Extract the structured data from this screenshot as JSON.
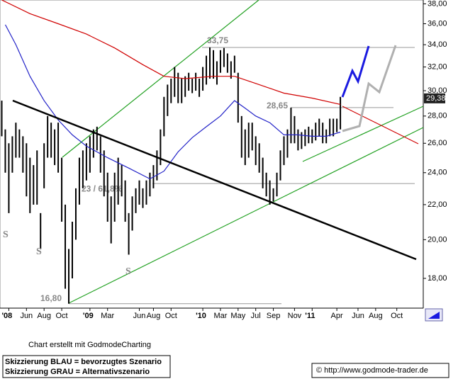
{
  "chart_data": {
    "type": "ohlc",
    "log": true,
    "ylim": [
      16.6,
      38.4
    ],
    "yticks": [
      {
        "value": 18,
        "label": "18,00"
      },
      {
        "value": 20,
        "label": "20,00"
      },
      {
        "value": 22,
        "label": "22,00"
      },
      {
        "value": 24,
        "label": "24,00"
      },
      {
        "value": 26,
        "label": "26,00"
      },
      {
        "value": 28,
        "label": "28,00"
      },
      {
        "value": 30,
        "label": "30,00"
      },
      {
        "value": 32,
        "label": "32,00"
      },
      {
        "value": 34,
        "label": "34,00"
      },
      {
        "value": 36,
        "label": "36,00"
      },
      {
        "value": 38,
        "label": "38,00"
      }
    ],
    "color": "#000000",
    "categories": [
      null,
      null,
      "'08",
      null,
      null,
      null,
      null,
      "Jun",
      null,
      null,
      null,
      null,
      "Aug",
      null,
      null,
      null,
      null,
      "Oct",
      null,
      null,
      null,
      null,
      null,
      null,
      null,
      "'09",
      null,
      null,
      null,
      null,
      "Mar",
      null,
      null,
      null,
      null,
      null,
      null,
      null,
      null,
      "Jun",
      null,
      null,
      null,
      "Aug",
      null,
      null,
      null,
      null,
      "Oct",
      null,
      null,
      null,
      null,
      null,
      null,
      null,
      null,
      "'10",
      null,
      null,
      null,
      null,
      "Mar",
      null,
      null,
      null,
      null,
      "May",
      null,
      null,
      null,
      null,
      "Jul",
      null,
      null,
      null,
      null,
      "Sep",
      null,
      null,
      null,
      null,
      null,
      "Nov",
      null,
      null,
      null,
      null,
      "'11",
      null,
      null,
      null,
      null,
      null,
      null,
      "Apr",
      null,
      null,
      null,
      null,
      null,
      "Jun",
      null,
      null,
      null,
      null,
      "Aug",
      null,
      null,
      null,
      null,
      null,
      "Oct",
      null,
      null,
      null,
      null,
      null,
      null,
      null
    ],
    "high": [
      29.2,
      27,
      26,
      26.5,
      27.5,
      27,
      26.5,
      26,
      25,
      24.5,
      25.5,
      21.5,
      26,
      28,
      27.5,
      27,
      27.5,
      25,
      22,
      19.5,
      21,
      23,
      25,
      25.5,
      26,
      26.5,
      27,
      27.2,
      26.5,
      25.5,
      24,
      22.5,
      24,
      25,
      24.5,
      23.5,
      21.5,
      22.5,
      23,
      23.5,
      23,
      23.5,
      24,
      24.5,
      25.5,
      27,
      29.5,
      30.5,
      31,
      32,
      31.5,
      31,
      31.2,
      31.5,
      31,
      31.5,
      31,
      32,
      33,
      33.75,
      33.5,
      32.5,
      33.5,
      33.7,
      33.2,
      32.5,
      33,
      31.5,
      28,
      27,
      27.5,
      27.5,
      26.5,
      26,
      25,
      24,
      23.5,
      23,
      24,
      25.5,
      26.5,
      27,
      28.65,
      28,
      27,
      26.8,
      27,
      27.2,
      27,
      27.5,
      27.8,
      27.5,
      27,
      27.8,
      27.8,
      27.8,
      29.5,
      null,
      null,
      null,
      null,
      null,
      null,
      null,
      null,
      null,
      null,
      null,
      null,
      null,
      null,
      null,
      null,
      null,
      null,
      null,
      null,
      null,
      null,
      null
    ],
    "low": [
      26.5,
      24,
      21.5,
      24,
      25,
      25,
      24,
      22.5,
      21.5,
      22,
      22,
      19.5,
      23,
      25,
      25,
      24.5,
      24,
      21,
      17.5,
      16.8,
      18,
      20,
      22,
      23,
      23.5,
      24,
      25,
      25.5,
      24,
      22.5,
      21,
      19.8,
      21,
      22,
      22.5,
      21,
      19.2,
      20.5,
      21.5,
      22,
      21.8,
      22,
      22.5,
      23,
      23.5,
      24.5,
      26.5,
      28,
      29,
      29.5,
      29,
      29,
      29.5,
      30,
      29.8,
      30,
      29.5,
      30,
      30.5,
      31,
      31,
      30.5,
      31.5,
      32,
      31.5,
      31,
      31.5,
      27.5,
      25,
      24.5,
      25,
      25.5,
      24.5,
      24,
      23,
      22.5,
      22,
      22.2,
      22.5,
      23.5,
      24.5,
      25,
      26,
      26,
      25.5,
      25.6,
      25.8,
      26,
      26,
      26.2,
      26.5,
      26,
      26,
      26.5,
      26.5,
      26.8,
      27,
      null,
      null,
      null,
      null,
      null,
      null,
      null,
      null,
      null,
      null,
      null,
      null,
      null,
      null,
      null,
      null,
      null,
      null,
      null,
      null,
      null,
      null,
      null
    ],
    "moving_averages": [
      {
        "color": "#2323c8",
        "x": [
          1,
          4,
          8,
          12,
          16,
          20,
          24,
          30,
          36,
          42,
          46,
          50,
          54,
          58,
          62,
          66,
          69,
          72,
          76,
          80,
          84,
          88,
          92,
          96
        ],
        "values": [
          35.9,
          34,
          31.2,
          29.2,
          27.7,
          26.6,
          25.8,
          25,
          24.3,
          23.6,
          24.1,
          25.4,
          26.4,
          27.2,
          28,
          29.2,
          28.6,
          28,
          27.5,
          26.6,
          26.6,
          26.5,
          26.5,
          26.8
        ]
      },
      {
        "color": "#d00000",
        "x": [
          0,
          8,
          16,
          24,
          32,
          40,
          46,
          52,
          60,
          66,
          72,
          80,
          88,
          96
        ],
        "values": [
          38.4,
          37,
          36,
          35,
          33.7,
          32.2,
          31.2,
          31,
          31.2,
          31.2,
          30.6,
          29.8,
          29.4,
          28.9
        ]
      }
    ],
    "levels": [
      {
        "value": 33.75,
        "label": "33,75"
      },
      {
        "value": 28.65,
        "label": "28,65"
      },
      {
        "value": 23.3,
        "label": "23 / 61,8%"
      },
      {
        "value": 16.8,
        "label": "16,80"
      }
    ],
    "last_price": {
      "value": 29.38,
      "label": "29,38"
    },
    "markers": [
      "S",
      "S",
      "S"
    ]
  },
  "footer": {
    "credit": "Chart erstellt mit GodmodeCharting",
    "legend": [
      "Skizzierung BLAU = bevorzugtes Szenario",
      "Skizzierung GRAU = Alternativszenario"
    ],
    "url": "© http://www.godmode-trader.de"
  }
}
